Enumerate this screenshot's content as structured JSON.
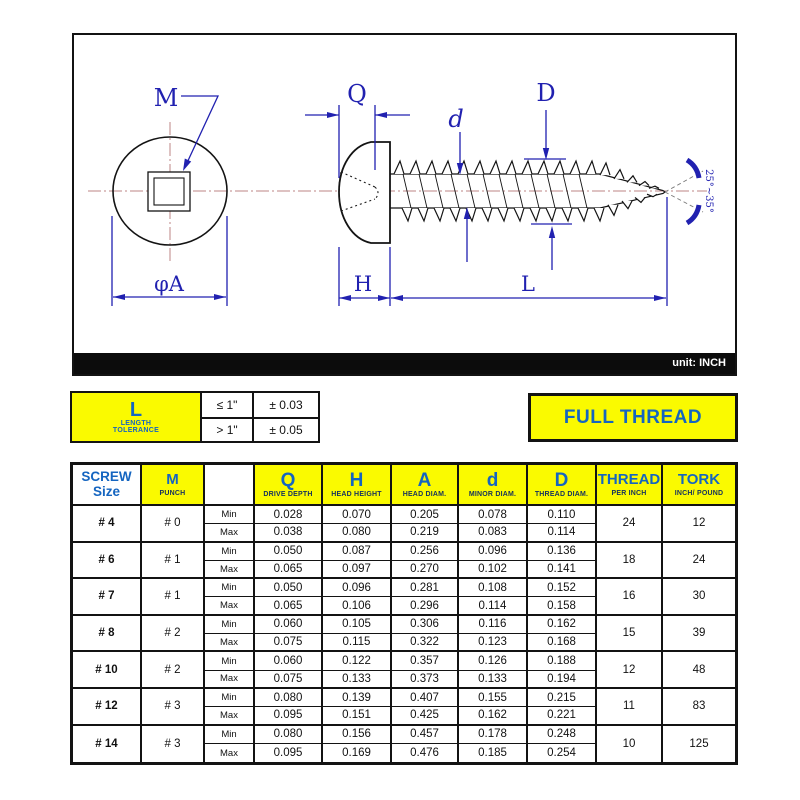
{
  "diagram": {
    "labels": {
      "m": "M",
      "q": "Q",
      "d_small": "d",
      "d_big": "D",
      "h": "H",
      "l": "L",
      "phi_a": "φA",
      "angle": "25°~35°"
    },
    "unit_note": "unit: INCH"
  },
  "tolerance_box": {
    "title": "L",
    "subtitle_line1": "LENGTH",
    "subtitle_line2": "TOLERANCE",
    "rows": [
      {
        "condition": "≤ 1\"",
        "value": "± 0.03"
      },
      {
        "condition": "> 1\"",
        "value": "± 0.05"
      }
    ]
  },
  "full_thread_label": "FULL THREAD",
  "table": {
    "headers": {
      "screw_line1": "SCREW",
      "screw_line2": "Size",
      "m": "M",
      "m_sub": "PUNCH",
      "q": "Q",
      "q_sub": "DRIVE DEPTH",
      "h": "H",
      "h_sub": "HEAD HEIGHT",
      "a": "A",
      "a_sub": "HEAD DIAM.",
      "d": "d",
      "d_sub": "MINOR DIAM.",
      "dd": "D",
      "dd_sub": "THREAD DIAM.",
      "thread": "THREAD",
      "thread_sub": "PER INCH",
      "tork": "TORK",
      "tork_sub": "INCH/ POUND"
    },
    "min_label": "Min",
    "max_label": "Max",
    "rows": [
      {
        "size": "# 4",
        "punch": "# 0",
        "min": [
          "0.028",
          "0.070",
          "0.205",
          "0.078",
          "0.110"
        ],
        "max": [
          "0.038",
          "0.080",
          "0.219",
          "0.083",
          "0.114"
        ],
        "thread_per_inch": "24",
        "tork": "12"
      },
      {
        "size": "# 6",
        "punch": "# 1",
        "min": [
          "0.050",
          "0.087",
          "0.256",
          "0.096",
          "0.136"
        ],
        "max": [
          "0.065",
          "0.097",
          "0.270",
          "0.102",
          "0.141"
        ],
        "thread_per_inch": "18",
        "tork": "24"
      },
      {
        "size": "# 7",
        "punch": "# 1",
        "min": [
          "0.050",
          "0.096",
          "0.281",
          "0.108",
          "0.152"
        ],
        "max": [
          "0.065",
          "0.106",
          "0.296",
          "0.114",
          "0.158"
        ],
        "thread_per_inch": "16",
        "tork": "30"
      },
      {
        "size": "# 8",
        "punch": "# 2",
        "min": [
          "0.060",
          "0.105",
          "0.306",
          "0.116",
          "0.162"
        ],
        "max": [
          "0.075",
          "0.115",
          "0.322",
          "0.123",
          "0.168"
        ],
        "thread_per_inch": "15",
        "tork": "39"
      },
      {
        "size": "# 10",
        "punch": "# 2",
        "min": [
          "0.060",
          "0.122",
          "0.357",
          "0.126",
          "0.188"
        ],
        "max": [
          "0.075",
          "0.133",
          "0.373",
          "0.133",
          "0.194"
        ],
        "thread_per_inch": "12",
        "tork": "48"
      },
      {
        "size": "# 12",
        "punch": "# 3",
        "min": [
          "0.080",
          "0.139",
          "0.407",
          "0.155",
          "0.215"
        ],
        "max": [
          "0.095",
          "0.151",
          "0.425",
          "0.162",
          "0.221"
        ],
        "thread_per_inch": "11",
        "tork": "83"
      },
      {
        "size": "# 14",
        "punch": "# 3",
        "min": [
          "0.080",
          "0.156",
          "0.457",
          "0.178",
          "0.248"
        ],
        "max": [
          "0.095",
          "0.169",
          "0.476",
          "0.185",
          "0.254"
        ],
        "thread_per_inch": "10",
        "tork": "125"
      }
    ]
  },
  "colors": {
    "accent_blue": "#1565c0",
    "drawing_blue": "#2121b0",
    "highlight_yellow": "#fafa00",
    "bar_black": "#0c0c0c"
  }
}
